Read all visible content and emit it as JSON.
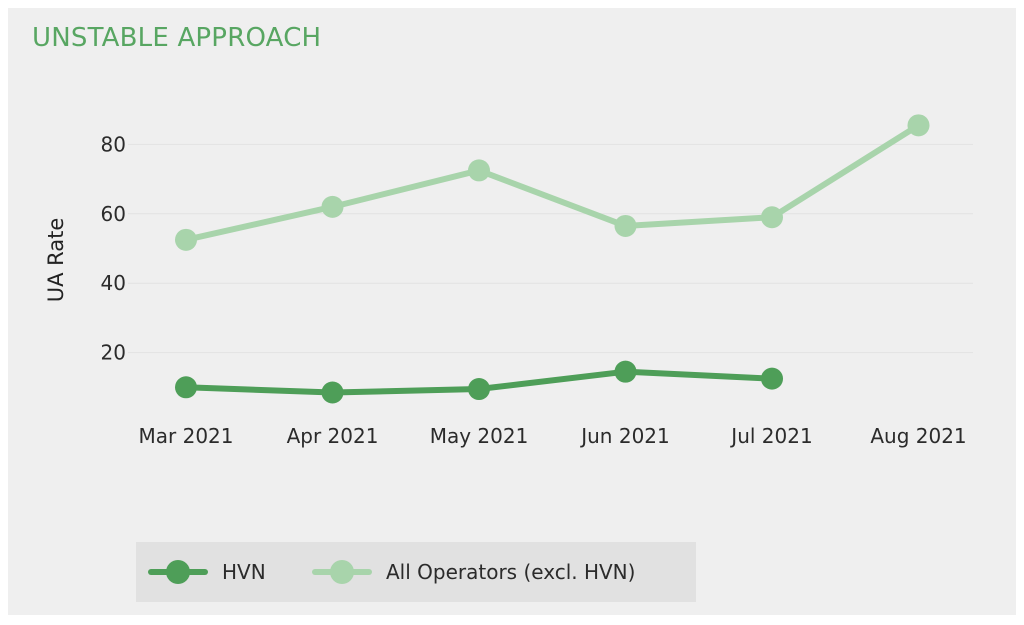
{
  "title": "UNSTABLE APPROACH",
  "colors": {
    "hvn": "#4e9e58",
    "all_operators": "#a8d4ab",
    "title": "#58a662",
    "background": "#efefef",
    "legend_background": "#e1e1e1"
  },
  "legend": {
    "hvn_label": "HVN",
    "all_label": "All Operators (excl. HVN)"
  },
  "chart_data": {
    "type": "line",
    "title": "UNSTABLE APPROACH",
    "xlabel": "",
    "ylabel": "UA Rate",
    "categories": [
      "Mar 2021",
      "Apr 2021",
      "May 2021",
      "Jun 2021",
      "Jul 2021",
      "Aug 2021"
    ],
    "y_ticks": [
      20,
      40,
      60,
      80
    ],
    "ylim": [
      0,
      90
    ],
    "grid": true,
    "legend_position": "bottom-left",
    "series": [
      {
        "name": "HVN",
        "color": "#4e9e58",
        "values": [
          10,
          8.5,
          9.5,
          14.5,
          12.5,
          null
        ]
      },
      {
        "name": "All Operators (excl. HVN)",
        "color": "#a8d4ab",
        "values": [
          52.5,
          62,
          72.5,
          56.5,
          59,
          85.5
        ]
      }
    ]
  }
}
